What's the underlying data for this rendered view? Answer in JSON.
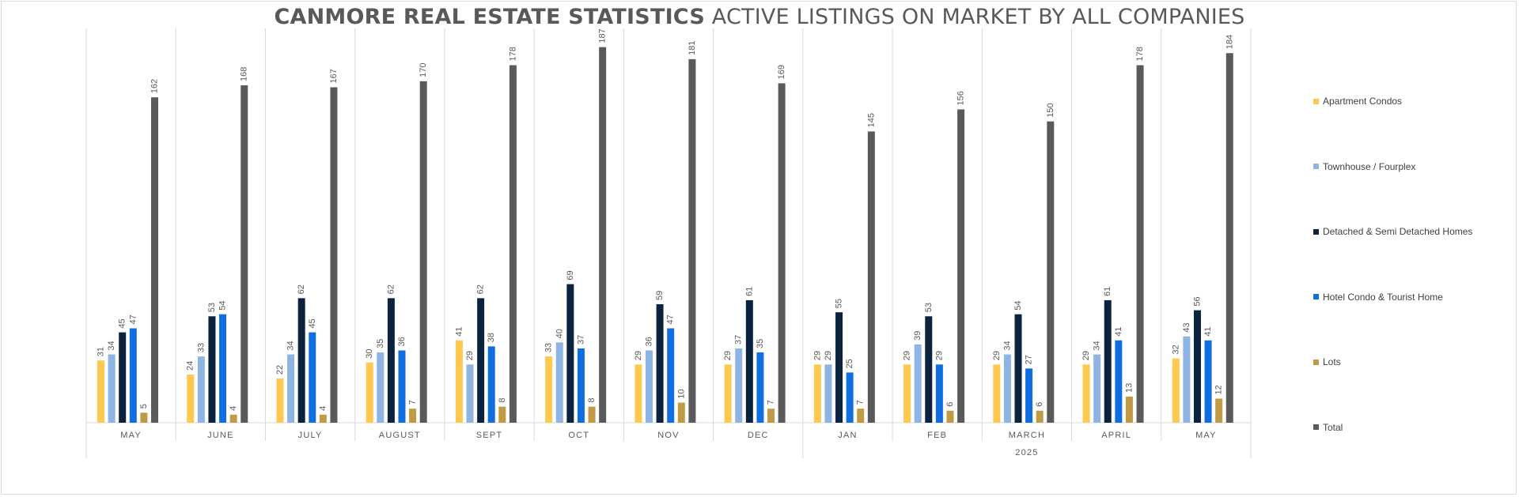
{
  "title": {
    "bold": "CANMORE REAL ESTATE STATISTICS",
    "rest": "ACTIVE LISTINGS ON MARKET BY ALL COMPANIES"
  },
  "chart_data": {
    "type": "bar",
    "title": "CANMORE REAL ESTATE STATISTICS ACTIVE LISTINGS ON MARKET BY ALL COMPANIES",
    "categories": [
      "MAY",
      "JUNE",
      "JULY",
      "AUGUST",
      "SEPT",
      "OCT",
      "NOV",
      "DEC",
      "JAN",
      "FEB",
      "MARCH",
      "APRIL",
      "MAY"
    ],
    "category_groups": [
      {
        "label": "2025",
        "start": 8,
        "end": 12
      }
    ],
    "ylim": [
      0,
      190
    ],
    "grid": false,
    "legend_position": "right",
    "series": [
      {
        "name": "Apartment Condos",
        "color": "#FFC84F",
        "values": [
          31,
          24,
          22,
          30,
          41,
          33,
          29,
          29,
          29,
          29,
          29,
          29,
          32
        ]
      },
      {
        "name": "Townhouse / Fourplex",
        "color": "#8EB4E3",
        "values": [
          34,
          33,
          34,
          35,
          29,
          40,
          36,
          37,
          29,
          39,
          34,
          34,
          43
        ]
      },
      {
        "name": "Detached & Semi Detached Homes",
        "color": "#0C2340",
        "values": [
          45,
          53,
          62,
          62,
          62,
          69,
          59,
          61,
          55,
          53,
          54,
          61,
          56
        ]
      },
      {
        "name": "Hotel Condo & Tourist Home",
        "color": "#0F6FE0",
        "values": [
          47,
          54,
          45,
          36,
          38,
          37,
          47,
          35,
          25,
          29,
          27,
          41,
          41
        ]
      },
      {
        "name": "Lots",
        "color": "#C09A45",
        "values": [
          5,
          4,
          4,
          7,
          8,
          8,
          10,
          7,
          7,
          6,
          6,
          13,
          12
        ]
      },
      {
        "name": "Total",
        "color": "#5A5A5A",
        "values": [
          162,
          168,
          167,
          170,
          178,
          187,
          181,
          169,
          145,
          156,
          150,
          178,
          184
        ]
      }
    ]
  }
}
